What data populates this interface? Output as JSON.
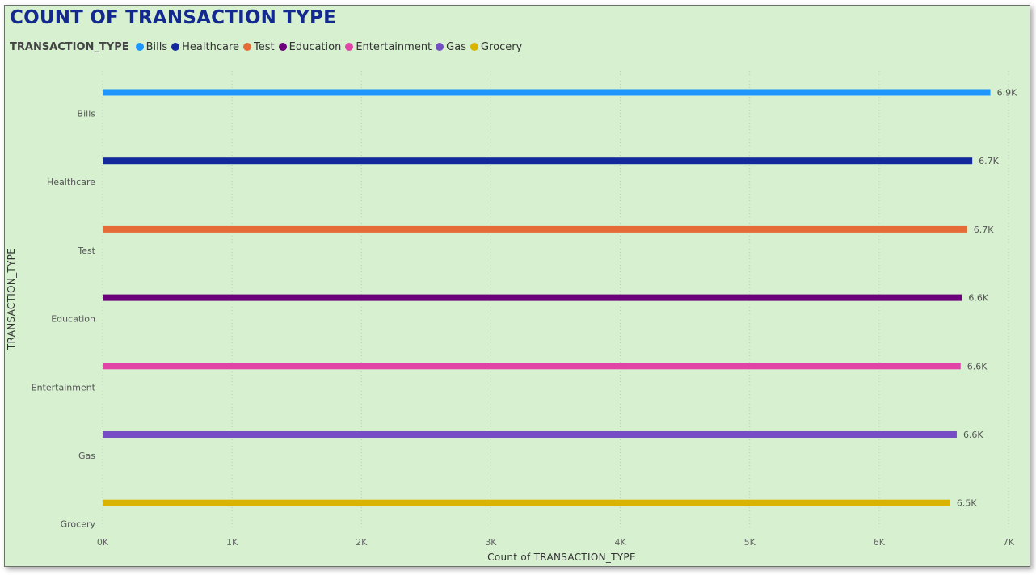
{
  "title": "COUNT OF TRANSACTION TYPE",
  "legend": {
    "title": "TRANSACTION_TYPE",
    "items": [
      {
        "label": "Bills",
        "color": "#1e96ff"
      },
      {
        "label": "Healthcare",
        "color": "#13299b"
      },
      {
        "label": "Test",
        "color": "#e66c37"
      },
      {
        "label": "Education",
        "color": "#6b007b"
      },
      {
        "label": "Entertainment",
        "color": "#e044a7"
      },
      {
        "label": "Gas",
        "color": "#744ec2"
      },
      {
        "label": "Grocery",
        "color": "#d9b300"
      }
    ]
  },
  "chart_data": {
    "type": "bar",
    "orientation": "horizontal",
    "title": "COUNT OF TRANSACTION TYPE",
    "xlabel": "Count of TRANSACTION_TYPE",
    "ylabel": "TRANSACTION_TYPE",
    "categories": [
      "Bills",
      "Healthcare",
      "Test",
      "Education",
      "Entertainment",
      "Gas",
      "Grocery"
    ],
    "values": [
      6860,
      6720,
      6680,
      6640,
      6630,
      6600,
      6550
    ],
    "data_labels": [
      "6.9K",
      "6.7K",
      "6.7K",
      "6.6K",
      "6.6K",
      "6.6K",
      "6.5K"
    ],
    "colors": [
      "#1e96ff",
      "#13299b",
      "#e66c37",
      "#6b007b",
      "#e044a7",
      "#744ec2",
      "#d9b300"
    ],
    "xlim": [
      0,
      7000
    ],
    "xticks": [
      0,
      1000,
      2000,
      3000,
      4000,
      5000,
      6000,
      7000
    ],
    "xtick_labels": [
      "0K",
      "1K",
      "2K",
      "3K",
      "4K",
      "5K",
      "6K",
      "7K"
    ],
    "grid": true,
    "legend_position": "top-left"
  }
}
